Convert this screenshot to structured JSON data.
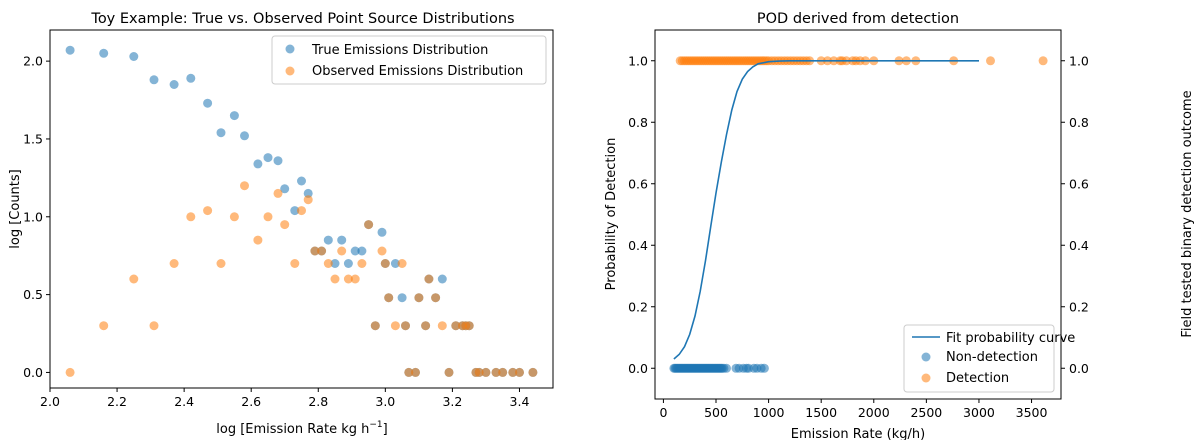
{
  "chart_data": [
    {
      "type": "scatter",
      "title": "Toy Example: True vs. Observed Point Source Distributions",
      "xlabel_main": "log [Emission Rate kg h",
      "xlabel_sup": "−1",
      "xlabel_end": "]",
      "ylabel": "log [Counts]",
      "xlim": [
        2.0,
        3.5
      ],
      "ylim": [
        -0.1,
        2.2
      ],
      "xticks": [
        2.0,
        2.2,
        2.4,
        2.6,
        2.8,
        3.0,
        3.2,
        3.4
      ],
      "xtick_labels": [
        "2.0",
        "2.2",
        "2.4",
        "2.6",
        "2.8",
        "3.0",
        "3.2",
        "3.4"
      ],
      "yticks": [
        0.0,
        0.5,
        1.0,
        1.5,
        2.0
      ],
      "ytick_labels": [
        "0.0",
        "0.5",
        "1.0",
        "1.5",
        "2.0"
      ],
      "grid": false,
      "legend_position": "top-right",
      "series": [
        {
          "name": "True Emissions Distribution",
          "color": "#1f77b4",
          "points": [
            [
              2.06,
              2.07
            ],
            [
              2.16,
              2.05
            ],
            [
              2.25,
              2.03
            ],
            [
              2.31,
              1.88
            ],
            [
              2.37,
              1.85
            ],
            [
              2.42,
              1.89
            ],
            [
              2.47,
              1.73
            ],
            [
              2.51,
              1.54
            ],
            [
              2.55,
              1.65
            ],
            [
              2.58,
              1.52
            ],
            [
              2.62,
              1.34
            ],
            [
              2.65,
              1.38
            ],
            [
              2.68,
              1.36
            ],
            [
              2.7,
              1.18
            ],
            [
              2.73,
              1.04
            ],
            [
              2.75,
              1.23
            ],
            [
              2.77,
              1.15
            ],
            [
              2.79,
              0.78
            ],
            [
              2.81,
              0.78
            ],
            [
              2.83,
              0.85
            ],
            [
              2.85,
              0.7
            ],
            [
              2.87,
              0.85
            ],
            [
              2.89,
              0.7
            ],
            [
              2.91,
              0.78
            ],
            [
              2.93,
              0.78
            ],
            [
              2.95,
              0.95
            ],
            [
              2.97,
              0.3
            ],
            [
              2.99,
              0.9
            ],
            [
              3.0,
              0.7
            ],
            [
              3.01,
              0.48
            ],
            [
              3.03,
              0.7
            ],
            [
              3.05,
              0.48
            ],
            [
              3.06,
              0.3
            ],
            [
              3.07,
              0.0
            ],
            [
              3.09,
              0.0
            ],
            [
              3.1,
              0.48
            ],
            [
              3.12,
              0.3
            ],
            [
              3.13,
              0.6
            ],
            [
              3.15,
              0.48
            ],
            [
              3.17,
              0.6
            ],
            [
              3.19,
              0.0
            ],
            [
              3.21,
              0.3
            ],
            [
              3.23,
              0.3
            ],
            [
              3.24,
              0.3
            ],
            [
              3.25,
              0.3
            ],
            [
              3.27,
              0.0
            ],
            [
              3.28,
              0.0
            ],
            [
              3.3,
              0.0
            ],
            [
              3.33,
              0.0
            ],
            [
              3.35,
              0.0
            ],
            [
              3.38,
              0.0
            ],
            [
              3.4,
              0.0
            ],
            [
              3.44,
              0.0
            ]
          ]
        },
        {
          "name": "Observed Emissions Distribution",
          "color": "#ff7f0e",
          "points": [
            [
              2.06,
              0.0
            ],
            [
              2.16,
              0.3
            ],
            [
              2.25,
              0.6
            ],
            [
              2.31,
              0.3
            ],
            [
              2.37,
              0.7
            ],
            [
              2.42,
              1.0
            ],
            [
              2.47,
              1.04
            ],
            [
              2.51,
              0.7
            ],
            [
              2.55,
              1.0
            ],
            [
              2.58,
              1.2
            ],
            [
              2.62,
              0.85
            ],
            [
              2.65,
              1.0
            ],
            [
              2.68,
              1.15
            ],
            [
              2.7,
              0.95
            ],
            [
              2.73,
              0.7
            ],
            [
              2.75,
              1.04
            ],
            [
              2.77,
              1.11
            ],
            [
              2.79,
              0.78
            ],
            [
              2.81,
              0.78
            ],
            [
              2.83,
              0.7
            ],
            [
              2.85,
              0.6
            ],
            [
              2.87,
              0.78
            ],
            [
              2.89,
              0.6
            ],
            [
              2.91,
              0.6
            ],
            [
              2.93,
              0.7
            ],
            [
              2.95,
              0.95
            ],
            [
              2.97,
              0.3
            ],
            [
              2.99,
              0.78
            ],
            [
              3.0,
              0.7
            ],
            [
              3.01,
              0.48
            ],
            [
              3.03,
              0.3
            ],
            [
              3.05,
              0.7
            ],
            [
              3.06,
              0.3
            ],
            [
              3.07,
              0.0
            ],
            [
              3.09,
              0.0
            ],
            [
              3.1,
              0.48
            ],
            [
              3.12,
              0.3
            ],
            [
              3.13,
              0.6
            ],
            [
              3.15,
              0.48
            ],
            [
              3.17,
              0.3
            ],
            [
              3.19,
              0.0
            ],
            [
              3.21,
              0.3
            ],
            [
              3.23,
              0.3
            ],
            [
              3.24,
              0.3
            ],
            [
              3.25,
              0.3
            ],
            [
              3.27,
              0.0
            ],
            [
              3.28,
              0.0
            ],
            [
              3.3,
              0.0
            ],
            [
              3.33,
              0.0
            ],
            [
              3.35,
              0.0
            ],
            [
              3.38,
              0.0
            ],
            [
              3.4,
              0.0
            ],
            [
              3.44,
              0.0
            ]
          ]
        }
      ]
    },
    {
      "type": "scatter",
      "title": "POD derived from detection",
      "xlabel": "Emission Rate (kg/h)",
      "ylabel": "Probability of Detection",
      "ylabel_right": "Field tested binary detection outcome",
      "xlim": [
        -80,
        3780
      ],
      "ylim": [
        -0.1,
        1.1
      ],
      "xticks": [
        0,
        500,
        1000,
        1500,
        2000,
        2500,
        3000,
        3500
      ],
      "xtick_labels": [
        "0",
        "500",
        "1000",
        "1500",
        "2000",
        "2500",
        "3000",
        "3500"
      ],
      "yticks": [
        0.0,
        0.2,
        0.4,
        0.6,
        0.8,
        1.0
      ],
      "ytick_labels": [
        "0.0",
        "0.2",
        "0.4",
        "0.6",
        "0.8",
        "1.0"
      ],
      "yticks_right": [
        0.0,
        0.2,
        0.4,
        0.6,
        0.8,
        1.0
      ],
      "ytick_labels_right": [
        "0.0",
        "0.2",
        "0.4",
        "0.6",
        "0.8",
        "1.0"
      ],
      "grid": false,
      "legend_position": "bottom-right",
      "fit_curve": {
        "name": "Fit probability curve",
        "color": "#1f77b4",
        "x": [
          100,
          150,
          200,
          250,
          300,
          350,
          400,
          450,
          500,
          550,
          600,
          650,
          700,
          750,
          800,
          850,
          900,
          1000,
          1100,
          1200,
          1400,
          1600,
          2000,
          2500,
          3000
        ],
        "y": [
          0.03,
          0.045,
          0.07,
          0.11,
          0.17,
          0.25,
          0.35,
          0.46,
          0.57,
          0.67,
          0.76,
          0.84,
          0.9,
          0.94,
          0.965,
          0.98,
          0.99,
          0.997,
          0.999,
          1.0,
          1.0,
          1.0,
          1.0,
          1.0,
          1.0
        ]
      },
      "series": [
        {
          "name": "Non-detection",
          "color": "#1f77b4",
          "points": [
            [
              100,
              0
            ],
            [
              110,
              0
            ],
            [
              120,
              0
            ],
            [
              130,
              0
            ],
            [
              140,
              0
            ],
            [
              150,
              0
            ],
            [
              160,
              0
            ],
            [
              170,
              0
            ],
            [
              180,
              0
            ],
            [
              190,
              0
            ],
            [
              200,
              0
            ],
            [
              210,
              0
            ],
            [
              220,
              0
            ],
            [
              230,
              0
            ],
            [
              240,
              0
            ],
            [
              250,
              0
            ],
            [
              260,
              0
            ],
            [
              270,
              0
            ],
            [
              280,
              0
            ],
            [
              290,
              0
            ],
            [
              300,
              0
            ],
            [
              310,
              0
            ],
            [
              320,
              0
            ],
            [
              330,
              0
            ],
            [
              340,
              0
            ],
            [
              350,
              0
            ],
            [
              360,
              0
            ],
            [
              370,
              0
            ],
            [
              380,
              0
            ],
            [
              390,
              0
            ],
            [
              400,
              0
            ],
            [
              410,
              0
            ],
            [
              420,
              0
            ],
            [
              430,
              0
            ],
            [
              440,
              0
            ],
            [
              450,
              0
            ],
            [
              460,
              0
            ],
            [
              470,
              0
            ],
            [
              480,
              0
            ],
            [
              490,
              0
            ],
            [
              500,
              0
            ],
            [
              510,
              0
            ],
            [
              520,
              0
            ],
            [
              530,
              0
            ],
            [
              540,
              0
            ],
            [
              550,
              0
            ],
            [
              560,
              0
            ],
            [
              575,
              0
            ],
            [
              600,
              0
            ],
            [
              690,
              0
            ],
            [
              720,
              0
            ],
            [
              760,
              0
            ],
            [
              790,
              0
            ],
            [
              810,
              0
            ],
            [
              860,
              0
            ],
            [
              890,
              0
            ],
            [
              930,
              0
            ],
            [
              960,
              0
            ]
          ]
        },
        {
          "name": "Detection",
          "color": "#ff7f0e",
          "points": [
            [
              160,
              1
            ],
            [
              180,
              1
            ],
            [
              200,
              1
            ],
            [
              220,
              1
            ],
            [
              240,
              1
            ],
            [
              260,
              1
            ],
            [
              280,
              1
            ],
            [
              300,
              1
            ],
            [
              320,
              1
            ],
            [
              340,
              1
            ],
            [
              360,
              1
            ],
            [
              380,
              1
            ],
            [
              400,
              1
            ],
            [
              420,
              1
            ],
            [
              440,
              1
            ],
            [
              460,
              1
            ],
            [
              480,
              1
            ],
            [
              500,
              1
            ],
            [
              520,
              1
            ],
            [
              540,
              1
            ],
            [
              560,
              1
            ],
            [
              580,
              1
            ],
            [
              600,
              1
            ],
            [
              620,
              1
            ],
            [
              640,
              1
            ],
            [
              660,
              1
            ],
            [
              680,
              1
            ],
            [
              700,
              1
            ],
            [
              720,
              1
            ],
            [
              740,
              1
            ],
            [
              760,
              1
            ],
            [
              780,
              1
            ],
            [
              800,
              1
            ],
            [
              820,
              1
            ],
            [
              840,
              1
            ],
            [
              860,
              1
            ],
            [
              880,
              1
            ],
            [
              900,
              1
            ],
            [
              920,
              1
            ],
            [
              940,
              1
            ],
            [
              960,
              1
            ],
            [
              980,
              1
            ],
            [
              1000,
              1
            ],
            [
              1030,
              1
            ],
            [
              1060,
              1
            ],
            [
              1090,
              1
            ],
            [
              1120,
              1
            ],
            [
              1150,
              1
            ],
            [
              1180,
              1
            ],
            [
              1210,
              1
            ],
            [
              1240,
              1
            ],
            [
              1270,
              1
            ],
            [
              1300,
              1
            ],
            [
              1330,
              1
            ],
            [
              1360,
              1
            ],
            [
              1390,
              1
            ],
            [
              1500,
              1
            ],
            [
              1560,
              1
            ],
            [
              1620,
              1
            ],
            [
              1680,
              1
            ],
            [
              1700,
              1
            ],
            [
              1740,
              1
            ],
            [
              1800,
              1
            ],
            [
              1830,
              1
            ],
            [
              1870,
              1
            ],
            [
              1920,
              1
            ],
            [
              2000,
              1
            ],
            [
              2240,
              1
            ],
            [
              2310,
              1
            ],
            [
              2400,
              1
            ],
            [
              2760,
              1
            ],
            [
              3110,
              1
            ],
            [
              3610,
              1
            ]
          ]
        }
      ]
    }
  ]
}
